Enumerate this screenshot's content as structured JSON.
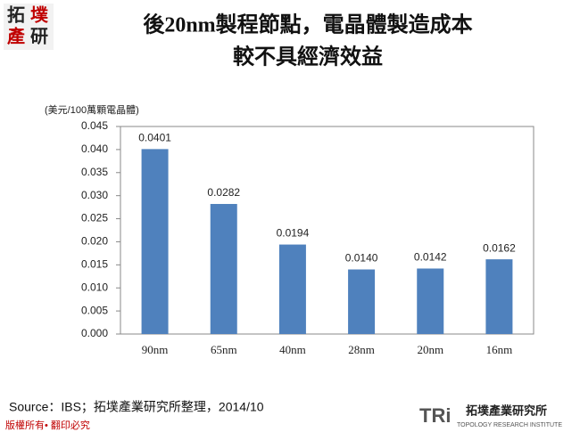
{
  "slide": {
    "logo": [
      "拓",
      "墣",
      "產",
      "研"
    ],
    "footer_source": "Source：IBS；拓墣產業研究所整理，2014/10",
    "copyright": "版權所有• 翻印必究",
    "brand_mark": "TRi",
    "brand_name": "拓墣產業研究所",
    "brand_sub": "TOPOLOGY RESEARCH INSTITUTE"
  },
  "chart_data": {
    "type": "bar",
    "title": "後20nm製程節點，電晶體製造成本",
    "subtitle": "較不具經濟效益",
    "y_label": "(美元/100萬顆電晶體)",
    "categories": [
      "90nm",
      "65nm",
      "40nm",
      "28nm",
      "20nm",
      "16nm"
    ],
    "values": [
      0.0401,
      0.0282,
      0.0194,
      0.014,
      0.0142,
      0.0162
    ],
    "value_labels": [
      "0.0401",
      "0.0282",
      "0.0194",
      "0.0140",
      "0.0142",
      "0.0162"
    ],
    "color": "#4f81bd",
    "ylim": [
      0,
      0.045
    ],
    "yticks": [
      {
        "value": 0,
        "label": "0.000"
      },
      0.005,
      {
        "value": 0.01,
        "label": "0.010"
      },
      0.015,
      {
        "value": 0.02,
        "label": "0.020"
      },
      0.025,
      {
        "value": 0.03,
        "label": "0.030"
      },
      0.035,
      {
        "value": 0.04,
        "label": "0.040"
      },
      0.045
    ],
    "grid": false
  }
}
